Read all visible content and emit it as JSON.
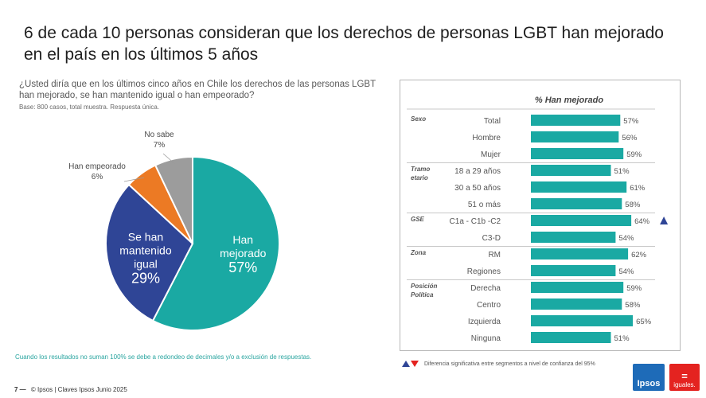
{
  "title": "6 de cada 10 personas consideran que los derechos de personas LGBT han mejorado en el país en los últimos 5 años",
  "question": "¿Usted diría que en los últimos cinco años en Chile los derechos de las personas LGBT han mejorado, se han mantenido igual o han empeorado?",
  "base": "Base: 800 casos, total muestra. Respuesta única.",
  "note": "Cuando los resultados no suman 100% se debe a redondeo de decimales y/o a exclusión de respuestas.",
  "footer": {
    "page": "7 —",
    "text": "© Ipsos | Claves Ipsos Junio 2025"
  },
  "legend_text": "Diferencia significativa entre segmentos a nivel de confianza del 95%",
  "logos": {
    "ipsos": "Ipsos",
    "iguales": "iguales."
  },
  "colors": {
    "teal": "#1aa9a3",
    "navy": "#2f4596",
    "orange": "#ec7a24",
    "gray": "#9c9c9c",
    "up": "#2f4596",
    "down": "#e42320"
  },
  "chart_data": [
    {
      "type": "pie",
      "title": "¿Usted diría que en los últimos cinco años en Chile los derechos de las personas LGBT han mejorado, se han mantenido igual o han empeorado?",
      "unit": "%",
      "slices": [
        {
          "label": [
            "Han",
            "mejorado"
          ],
          "value": 57,
          "display": "57%",
          "color": "#1aa9a3",
          "inside": true
        },
        {
          "label": [
            "Se han",
            "mantenido",
            "igual"
          ],
          "value": 29,
          "display": "29%",
          "color": "#2f4596",
          "inside": true
        },
        {
          "label": [
            "Han empeorado"
          ],
          "value": 6,
          "display": "6%",
          "color": "#ec7a24",
          "inside": false
        },
        {
          "label": [
            "No sabe"
          ],
          "value": 7,
          "display": "7%",
          "color": "#9c9c9c",
          "inside": false
        }
      ]
    },
    {
      "type": "bar",
      "orientation": "horizontal",
      "title": "% Han mejorado",
      "unit": "%",
      "xlim": [
        0,
        100
      ],
      "groups": [
        {
          "name": [
            "Sexo"
          ],
          "rows": [
            {
              "label": "Total",
              "value": 57,
              "display": "57%",
              "marker": null
            },
            {
              "label": "Hombre",
              "value": 56,
              "display": "56%",
              "marker": null
            },
            {
              "label": "Mujer",
              "value": 59,
              "display": "59%",
              "marker": null
            }
          ]
        },
        {
          "name": [
            "Tramo",
            "etario"
          ],
          "rows": [
            {
              "label": "18 a 29 años",
              "value": 51,
              "display": "51%",
              "marker": null
            },
            {
              "label": "30 a 50 años",
              "value": 61,
              "display": "61%",
              "marker": null
            },
            {
              "label": "51 o más",
              "value": 58,
              "display": "58%",
              "marker": null
            }
          ]
        },
        {
          "name": [
            "GSE"
          ],
          "rows": [
            {
              "label": "C1a - C1b -C2",
              "value": 64,
              "display": "64%",
              "marker": "up"
            },
            {
              "label": "C3-D",
              "value": 54,
              "display": "54%",
              "marker": null
            }
          ]
        },
        {
          "name": [
            "Zona"
          ],
          "rows": [
            {
              "label": "RM",
              "value": 62,
              "display": "62%",
              "marker": null
            },
            {
              "label": "Regiones",
              "value": 54,
              "display": "54%",
              "marker": null
            }
          ]
        },
        {
          "name": [
            "Posición",
            "Política"
          ],
          "rows": [
            {
              "label": "Derecha",
              "value": 59,
              "display": "59%",
              "marker": null
            },
            {
              "label": "Centro",
              "value": 58,
              "display": "58%",
              "marker": null
            },
            {
              "label": "Izquierda",
              "value": 65,
              "display": "65%",
              "marker": null
            },
            {
              "label": "Ninguna",
              "value": 51,
              "display": "51%",
              "marker": null
            }
          ]
        }
      ]
    }
  ]
}
